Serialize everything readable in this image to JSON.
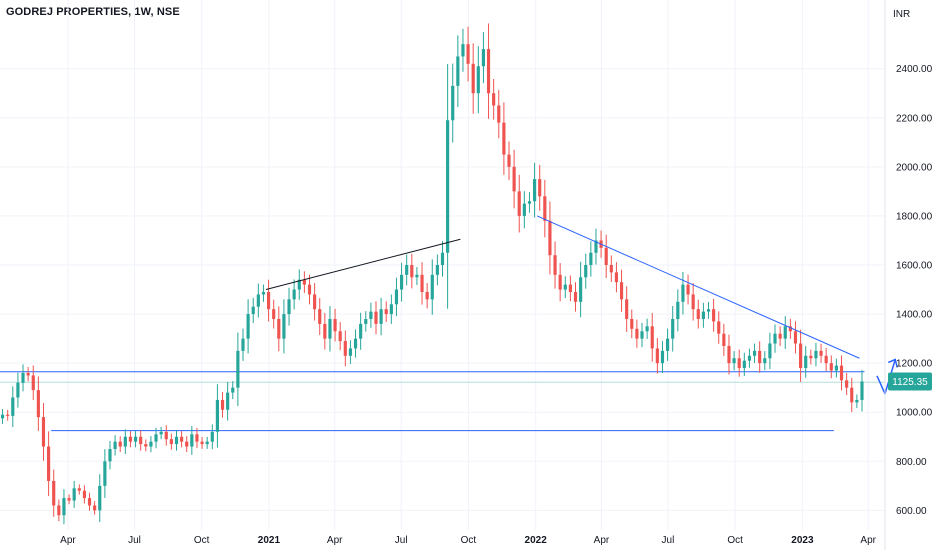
{
  "header": {
    "title": "GODREJ PROPERTIES, 1W, NSE"
  },
  "chart_data": {
    "type": "candlestick",
    "title": "GODREJ PROPERTIES, 1W, NSE",
    "currency_label": "INR",
    "ylim": [
      520,
      2680
    ],
    "y_ticks": [
      600,
      800,
      1000,
      1200,
      1400,
      1600,
      1800,
      2000,
      2200,
      2400
    ],
    "y_tick_labels": [
      "600.00",
      "800.00",
      "1000.00",
      "1200.00",
      "1400.00",
      "1600.00",
      "1800.00",
      "2000.00",
      "2200.00",
      "2400.00"
    ],
    "x_range": [
      "2019-12-30",
      "2023-04-24"
    ],
    "x_ticks": [
      {
        "date": "2020-04-01",
        "label": "Apr",
        "bold": false
      },
      {
        "date": "2020-07-01",
        "label": "Jul",
        "bold": false
      },
      {
        "date": "2020-10-01",
        "label": "Oct",
        "bold": false
      },
      {
        "date": "2021-01-01",
        "label": "2021",
        "bold": true
      },
      {
        "date": "2021-04-01",
        "label": "Apr",
        "bold": false
      },
      {
        "date": "2021-07-01",
        "label": "Jul",
        "bold": false
      },
      {
        "date": "2021-10-01",
        "label": "Oct",
        "bold": false
      },
      {
        "date": "2022-01-01",
        "label": "2022",
        "bold": true
      },
      {
        "date": "2022-04-01",
        "label": "Apr",
        "bold": false
      },
      {
        "date": "2022-07-01",
        "label": "Jul",
        "bold": false
      },
      {
        "date": "2022-10-01",
        "label": "Oct",
        "bold": false
      },
      {
        "date": "2023-01-01",
        "label": "2023",
        "bold": true
      },
      {
        "date": "2023-04-01",
        "label": "Apr",
        "bold": false
      }
    ],
    "last_price": 1125.35,
    "last_price_label": "1125.35",
    "colors": {
      "up": "#26a69a",
      "down": "#ef5350",
      "support": "#2962ff",
      "trend": "#131722",
      "grid": "#f0f3fa",
      "last": "#26a69a"
    },
    "closes": [
      990,
      985,
      1060,
      1120,
      1160,
      1150,
      1090,
      980,
      860,
      720,
      620,
      580,
      650,
      640,
      690,
      680,
      650,
      620,
      600,
      700,
      800,
      850,
      880,
      860,
      900,
      880,
      900,
      870,
      860,
      880,
      910,
      920,
      890,
      870,
      900,
      880,
      860,
      910,
      880,
      870,
      880,
      920,
      1050,
      1010,
      1080,
      1100,
      1250,
      1300,
      1400,
      1430,
      1480,
      1490,
      1420,
      1380,
      1300,
      1400,
      1460,
      1500,
      1540,
      1520,
      1480,
      1420,
      1360,
      1300,
      1380,
      1330,
      1290,
      1230,
      1260,
      1300,
      1360,
      1380,
      1410,
      1360,
      1420,
      1400,
      1440,
      1500,
      1560,
      1600,
      1550,
      1560,
      1490,
      1460,
      1560,
      1600,
      1650,
      2190,
      2330,
      2450,
      2500,
      2420,
      2300,
      2410,
      2480,
      2300,
      2250,
      2180,
      2050,
      2000,
      1900,
      1800,
      1850,
      1860,
      1950,
      1880,
      1780,
      1640,
      1560,
      1500,
      1520,
      1490,
      1450,
      1550,
      1600,
      1650,
      1700,
      1670,
      1600,
      1570,
      1530,
      1460,
      1380,
      1340,
      1300,
      1330,
      1350,
      1260,
      1200,
      1250,
      1300,
      1380,
      1450,
      1520,
      1480,
      1420,
      1380,
      1410,
      1420,
      1370,
      1320,
      1270,
      1200,
      1220,
      1180,
      1210,
      1230,
      1250,
      1200,
      1220,
      1280,
      1320,
      1300,
      1350,
      1330,
      1280,
      1180,
      1230,
      1220,
      1250,
      1230,
      1200,
      1170,
      1190,
      1130,
      1100,
      1040,
      1050,
      1125.35
    ],
    "support_lines": [
      {
        "from": "2019-12-30",
        "to": "2023-03-27",
        "value": 1165
      },
      {
        "from": "2020-03-09",
        "to": "2023-02-13",
        "value": 925
      }
    ],
    "trend_lines": [
      {
        "from": {
          "date": "2020-12-28",
          "value": 1500
        },
        "to": {
          "date": "2021-09-20",
          "value": 1705
        },
        "color": "trend"
      },
      {
        "from": {
          "date": "2022-01-03",
          "value": 1800
        },
        "to": {
          "date": "2023-03-20",
          "value": 1220
        },
        "color": "support"
      }
    ],
    "thin_line": {
      "value": 1122
    },
    "projection_arrow": [
      {
        "date": "2023-04-24",
        "value": 1075
      },
      {
        "date": "2023-05-08",
        "value": 1215
      }
    ],
    "grid": true
  }
}
